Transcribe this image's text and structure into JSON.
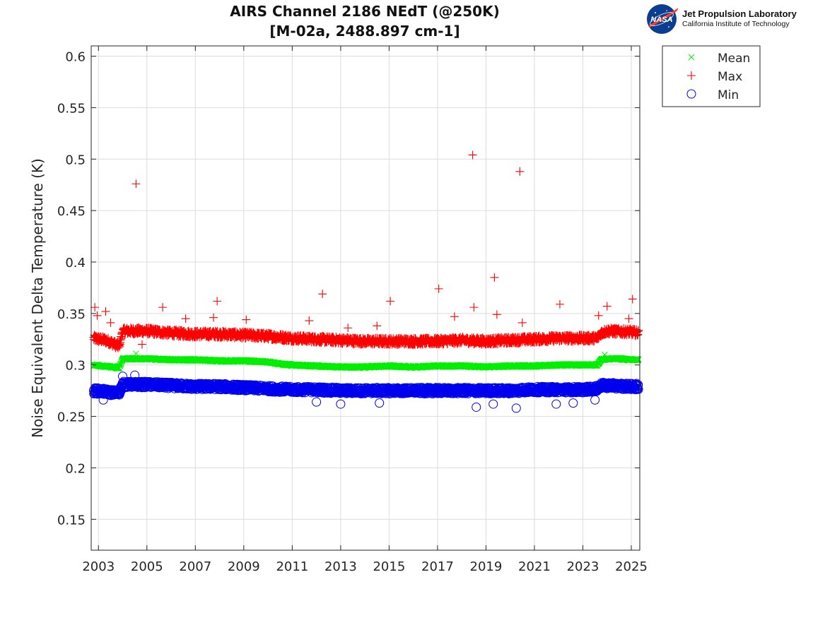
{
  "logo": {
    "org_name": "Jet Propulsion Laboratory",
    "org_sub": "California Institute of Technology",
    "badge_text": "NASA",
    "badge_color": "#0b3d91",
    "swoosh_color": "#fc3d21"
  },
  "chart_data": {
    "type": "scatter",
    "title": "AIRS Channel 2186 NEdT (@250K)",
    "subtitle": "[M-02a, 2488.897 cm-1]",
    "xlabel": "",
    "ylabel": "Noise Equivalent Delta Temperature (K)",
    "xlim": [
      2002.7,
      2025.35
    ],
    "ylim": [
      0.12,
      0.61
    ],
    "x_ticks": [
      2003,
      2005,
      2007,
      2009,
      2011,
      2013,
      2015,
      2017,
      2019,
      2021,
      2023,
      2025
    ],
    "y_ticks": [
      0.15,
      0.2,
      0.25,
      0.3,
      0.35,
      0.4,
      0.45,
      0.5,
      0.55,
      0.6
    ],
    "y_tick_labels": [
      "0.15",
      "0.2",
      "0.25",
      "0.3",
      "0.35",
      "0.4",
      "0.45",
      "0.5",
      "0.55",
      "0.6"
    ],
    "grid": true,
    "legend_position": "outside-top-right",
    "series": [
      {
        "name": "Mean",
        "marker": "x",
        "color": "#00ee00",
        "x": [
          2002.8,
          2003.2,
          2003.6,
          2003.85,
          2004.0,
          2005.0,
          2006.0,
          2007.0,
          2008.0,
          2009.0,
          2010.0,
          2010.5,
          2011.0,
          2012.0,
          2013.0,
          2014.0,
          2015.0,
          2016.0,
          2017.0,
          2018.0,
          2019.0,
          2020.0,
          2021.0,
          2022.0,
          2023.0,
          2023.6,
          2023.75,
          2024.0,
          2024.5,
          2025.0,
          2025.3
        ],
        "y": [
          0.3,
          0.299,
          0.298,
          0.297,
          0.306,
          0.306,
          0.305,
          0.305,
          0.304,
          0.304,
          0.303,
          0.301,
          0.3,
          0.299,
          0.298,
          0.298,
          0.299,
          0.298,
          0.299,
          0.299,
          0.298,
          0.299,
          0.299,
          0.3,
          0.3,
          0.3,
          0.305,
          0.306,
          0.306,
          0.305,
          0.305
        ],
        "outliers": [
          [
            2004.55,
            0.311
          ],
          [
            2023.9,
            0.31
          ]
        ]
      },
      {
        "name": "Max",
        "marker": "+",
        "color": "#ff0000",
        "x": [
          2002.8,
          2003.3,
          2003.6,
          2003.85,
          2004.0,
          2005.0,
          2006.0,
          2007.0,
          2008.0,
          2009.0,
          2010.0,
          2011.0,
          2012.0,
          2013.0,
          2014.0,
          2015.0,
          2016.0,
          2017.0,
          2018.0,
          2019.0,
          2020.0,
          2021.0,
          2022.0,
          2023.0,
          2023.6,
          2023.75,
          2024.0,
          2025.0,
          2025.3
        ],
        "y": [
          0.326,
          0.324,
          0.321,
          0.318,
          0.333,
          0.333,
          0.331,
          0.33,
          0.33,
          0.329,
          0.328,
          0.326,
          0.325,
          0.324,
          0.323,
          0.323,
          0.323,
          0.323,
          0.324,
          0.323,
          0.324,
          0.325,
          0.326,
          0.326,
          0.326,
          0.331,
          0.333,
          0.332,
          0.331
        ],
        "outliers": [
          [
            2002.85,
            0.356
          ],
          [
            2002.95,
            0.348
          ],
          [
            2003.3,
            0.352
          ],
          [
            2003.5,
            0.341
          ],
          [
            2004.55,
            0.476
          ],
          [
            2004.8,
            0.32
          ],
          [
            2005.65,
            0.356
          ],
          [
            2006.6,
            0.345
          ],
          [
            2007.75,
            0.346
          ],
          [
            2007.9,
            0.362
          ],
          [
            2009.1,
            0.344
          ],
          [
            2011.7,
            0.343
          ],
          [
            2012.25,
            0.369
          ],
          [
            2013.3,
            0.336
          ],
          [
            2014.5,
            0.338
          ],
          [
            2015.05,
            0.362
          ],
          [
            2017.05,
            0.374
          ],
          [
            2017.7,
            0.347
          ],
          [
            2018.45,
            0.504
          ],
          [
            2018.5,
            0.356
          ],
          [
            2019.35,
            0.385
          ],
          [
            2019.45,
            0.349
          ],
          [
            2020.4,
            0.488
          ],
          [
            2020.5,
            0.341
          ],
          [
            2022.05,
            0.359
          ],
          [
            2023.65,
            0.348
          ],
          [
            2024.0,
            0.357
          ],
          [
            2024.9,
            0.345
          ],
          [
            2025.05,
            0.364
          ]
        ]
      },
      {
        "name": "Min",
        "marker": "o",
        "color": "#0000ee",
        "x": [
          2002.8,
          2003.3,
          2003.6,
          2003.85,
          2004.0,
          2005.0,
          2006.0,
          2007.0,
          2008.0,
          2009.0,
          2010.0,
          2011.0,
          2012.0,
          2013.0,
          2014.0,
          2015.0,
          2016.0,
          2017.0,
          2018.0,
          2019.0,
          2020.0,
          2021.0,
          2022.0,
          2023.0,
          2023.6,
          2023.75,
          2024.0,
          2025.0,
          2025.3
        ],
        "y": [
          0.275,
          0.274,
          0.273,
          0.273,
          0.281,
          0.281,
          0.28,
          0.279,
          0.279,
          0.278,
          0.277,
          0.276,
          0.276,
          0.275,
          0.275,
          0.275,
          0.275,
          0.275,
          0.275,
          0.275,
          0.275,
          0.276,
          0.276,
          0.276,
          0.277,
          0.28,
          0.28,
          0.279,
          0.279
        ],
        "outliers": [
          [
            2003.2,
            0.266
          ],
          [
            2004.0,
            0.289
          ],
          [
            2004.5,
            0.29
          ],
          [
            2012.0,
            0.264
          ],
          [
            2013.0,
            0.262
          ],
          [
            2014.6,
            0.263
          ],
          [
            2018.6,
            0.259
          ],
          [
            2019.3,
            0.262
          ],
          [
            2020.25,
            0.258
          ],
          [
            2021.9,
            0.262
          ],
          [
            2022.6,
            0.263
          ],
          [
            2023.5,
            0.266
          ]
        ]
      }
    ]
  }
}
